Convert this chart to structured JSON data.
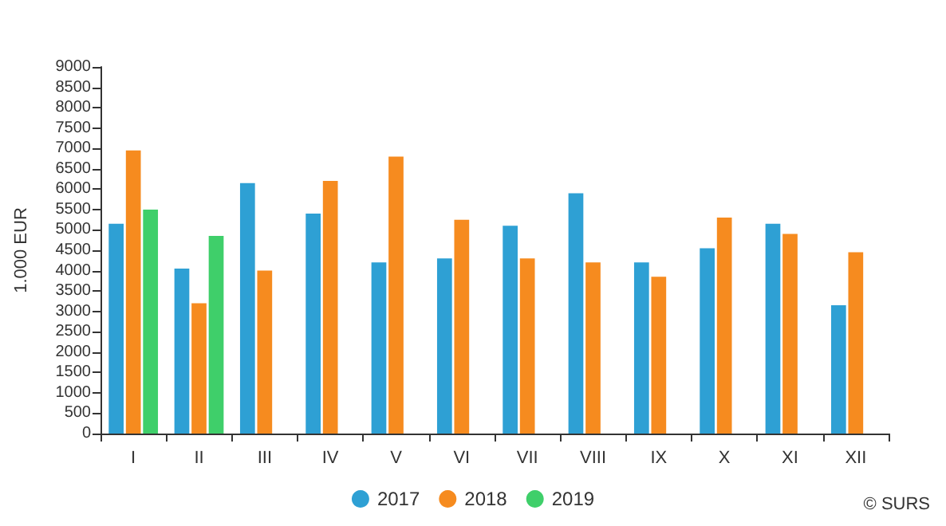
{
  "chart_data": {
    "type": "bar",
    "ylabel": "1.000 EUR",
    "categories": [
      "I",
      "II",
      "III",
      "IV",
      "V",
      "VI",
      "VII",
      "VIII",
      "IX",
      "X",
      "XI",
      "XII"
    ],
    "series": [
      {
        "name": "2017",
        "color": "#2ea0d4",
        "values": [
          5150,
          4050,
          6150,
          5400,
          4200,
          4300,
          5100,
          5900,
          4200,
          4550,
          5150,
          3150
        ]
      },
      {
        "name": "2018",
        "color": "#f68b1f",
        "values": [
          6950,
          3200,
          4000,
          6200,
          6800,
          5250,
          4300,
          4200,
          3850,
          5300,
          4900,
          4450
        ]
      },
      {
        "name": "2019",
        "color": "#3fcf6a",
        "values": [
          5500,
          4850,
          null,
          null,
          null,
          null,
          null,
          null,
          null,
          null,
          null,
          null
        ]
      }
    ],
    "ylim": [
      0,
      9000
    ],
    "yticks": [
      0,
      500,
      1000,
      1500,
      2000,
      2500,
      3000,
      3500,
      4000,
      4500,
      5000,
      5500,
      6000,
      6500,
      7000,
      7500,
      8000,
      8500,
      9000
    ],
    "grid": false,
    "legend": "bottom",
    "marker": "circle",
    "annotations": [
      "© SURS"
    ]
  }
}
